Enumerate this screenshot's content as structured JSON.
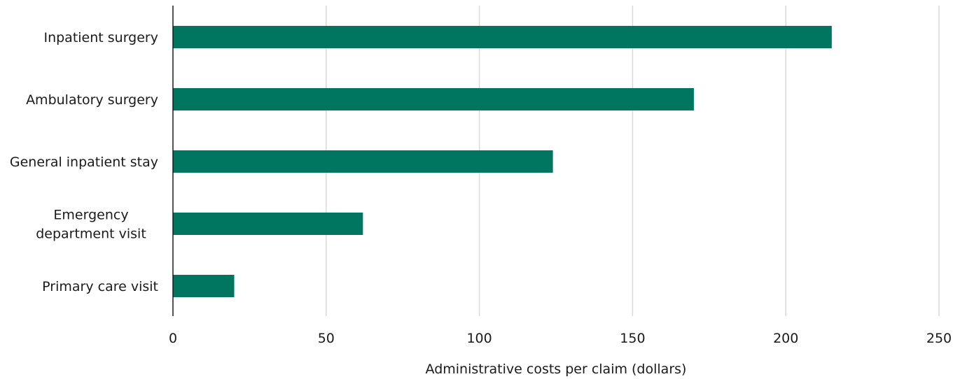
{
  "chart_data": {
    "type": "bar",
    "orientation": "horizontal",
    "categories": [
      "Inpatient surgery",
      "Ambulatory surgery",
      "General inpatient stay",
      "Emergency department visit",
      "Primary care visit"
    ],
    "category_lines": [
      [
        "Inpatient surgery"
      ],
      [
        "Ambulatory surgery"
      ],
      [
        "General inpatient stay"
      ],
      [
        "Emergency",
        "department visit"
      ],
      [
        "Primary care visit"
      ]
    ],
    "values": [
      215,
      170,
      124,
      62,
      20
    ],
    "title": "",
    "xlabel": "Administrative costs per claim (dollars)",
    "ylabel": "",
    "xlim": [
      0,
      250
    ],
    "xticks": [
      0,
      50,
      100,
      150,
      200,
      250
    ],
    "xtick_labels": [
      "0",
      "50",
      "100",
      "150",
      "200",
      "250"
    ],
    "grid": true,
    "legend": "none",
    "colors": {
      "bar": "#007560",
      "grid": "#d9d9d9",
      "axis": "#1a1a1a"
    }
  }
}
